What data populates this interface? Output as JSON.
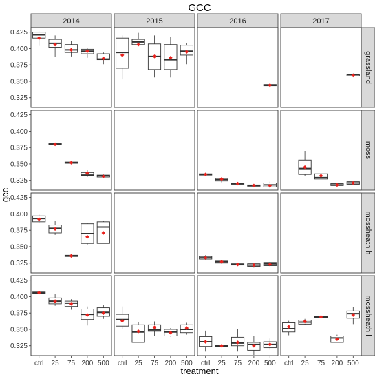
{
  "chart_data": {
    "type": "boxplot",
    "title": "GCC",
    "xlabel": "treatment",
    "ylabel": "gcc",
    "ylim": [
      0.31,
      0.432
    ],
    "yticks": [
      "0.325",
      "0.350",
      "0.375",
      "0.400",
      "0.425"
    ],
    "categories": [
      "ctrl",
      "25",
      "75",
      "200",
      "500"
    ],
    "years": [
      "2014",
      "2015",
      "2016",
      "2017"
    ],
    "sites": [
      "grassland",
      "moss",
      "mossheath h",
      "mossheath l"
    ],
    "colors": {
      "mean": "#e8211c",
      "strip": "#d9d9d9",
      "box": "#333333",
      "border": "#333333"
    },
    "panels": {
      "grassland": {
        "2014": [
          {
            "min": 0.404,
            "q1": 0.416,
            "med": 0.421,
            "q3": 0.425,
            "max": 0.426,
            "mean": 0.416
          },
          {
            "min": 0.387,
            "q1": 0.402,
            "med": 0.408,
            "q3": 0.414,
            "max": 0.42,
            "mean": 0.406
          },
          {
            "min": 0.388,
            "q1": 0.394,
            "med": 0.398,
            "q3": 0.406,
            "max": 0.412,
            "mean": 0.398
          },
          {
            "min": 0.386,
            "q1": 0.392,
            "med": 0.396,
            "q3": 0.399,
            "max": 0.401,
            "mean": 0.396
          },
          {
            "min": 0.376,
            "q1": 0.383,
            "med": 0.384,
            "q3": 0.392,
            "max": 0.394,
            "mean": 0.385
          }
        ],
        "2015": [
          {
            "min": 0.353,
            "q1": 0.37,
            "med": 0.394,
            "q3": 0.416,
            "max": 0.42,
            "mean": 0.39
          },
          {
            "min": 0.404,
            "q1": 0.406,
            "med": 0.41,
            "q3": 0.414,
            "max": 0.424,
            "mean": 0.406
          },
          {
            "min": 0.356,
            "q1": 0.368,
            "med": 0.388,
            "q3": 0.407,
            "max": 0.42,
            "mean": 0.388
          },
          {
            "min": 0.356,
            "q1": 0.368,
            "med": 0.383,
            "q3": 0.406,
            "max": 0.418,
            "mean": 0.386
          },
          {
            "min": 0.376,
            "q1": 0.39,
            "med": 0.396,
            "q3": 0.405,
            "max": 0.408,
            "mean": 0.395
          }
        ],
        "2016": [
          null,
          null,
          null,
          null,
          {
            "min": 0.343,
            "q1": 0.343,
            "med": 0.344,
            "q3": 0.345,
            "max": 0.346,
            "mean": 0.344
          }
        ],
        "2017": [
          null,
          null,
          null,
          null,
          {
            "min": 0.357,
            "q1": 0.358,
            "med": 0.36,
            "q3": 0.361,
            "max": 0.362,
            "mean": 0.359
          }
        ]
      },
      "moss": {
        "2014": [
          null,
          {
            "min": 0.379,
            "q1": 0.379,
            "med": 0.38,
            "q3": 0.381,
            "max": 0.381,
            "mean": 0.38
          },
          {
            "min": 0.351,
            "q1": 0.351,
            "med": 0.352,
            "q3": 0.353,
            "max": 0.353,
            "mean": 0.352
          },
          {
            "min": 0.33,
            "q1": 0.332,
            "med": 0.333,
            "q3": 0.337,
            "max": 0.341,
            "mean": 0.336
          },
          {
            "min": 0.329,
            "q1": 0.33,
            "med": 0.332,
            "q3": 0.333,
            "max": 0.334,
            "mean": 0.331
          }
        ],
        "2015": [
          null,
          null,
          null,
          null,
          null
        ],
        "2016": [
          {
            "min": 0.332,
            "q1": 0.333,
            "med": 0.334,
            "q3": 0.335,
            "max": 0.335,
            "mean": 0.334
          },
          {
            "min": 0.322,
            "q1": 0.324,
            "med": 0.326,
            "q3": 0.328,
            "max": 0.33,
            "mean": 0.327
          },
          {
            "min": 0.318,
            "q1": 0.319,
            "med": 0.32,
            "q3": 0.321,
            "max": 0.322,
            "mean": 0.32
          },
          {
            "min": 0.315,
            "q1": 0.316,
            "med": 0.317,
            "q3": 0.318,
            "max": 0.318,
            "mean": 0.317
          },
          {
            "min": 0.313,
            "q1": 0.315,
            "med": 0.318,
            "q3": 0.321,
            "max": 0.323,
            "mean": 0.317
          }
        ],
        "2017": [
          null,
          {
            "min": 0.332,
            "q1": 0.334,
            "med": 0.343,
            "q3": 0.356,
            "max": 0.37,
            "mean": 0.345
          },
          {
            "min": 0.326,
            "q1": 0.327,
            "med": 0.329,
            "q3": 0.335,
            "max": 0.337,
            "mean": 0.332
          },
          {
            "min": 0.315,
            "q1": 0.317,
            "med": 0.318,
            "q3": 0.32,
            "max": 0.32,
            "mean": 0.318
          },
          {
            "min": 0.318,
            "q1": 0.319,
            "med": 0.321,
            "q3": 0.323,
            "max": 0.324,
            "mean": 0.321
          }
        ]
      },
      "mossheath h": {
        "2014": [
          {
            "min": 0.386,
            "q1": 0.388,
            "med": 0.393,
            "q3": 0.397,
            "max": 0.399,
            "mean": 0.392
          },
          {
            "min": 0.368,
            "q1": 0.371,
            "med": 0.378,
            "q3": 0.383,
            "max": 0.389,
            "mean": 0.377
          },
          {
            "min": 0.335,
            "q1": 0.335,
            "med": 0.336,
            "q3": 0.337,
            "max": 0.337,
            "mean": 0.336
          },
          {
            "min": 0.353,
            "q1": 0.355,
            "med": 0.37,
            "q3": 0.385,
            "max": 0.386,
            "mean": 0.365
          },
          {
            "min": 0.355,
            "q1": 0.355,
            "med": 0.38,
            "q3": 0.388,
            "max": 0.389,
            "mean": 0.371
          }
        ],
        "2015": [
          null,
          null,
          null,
          null,
          null
        ],
        "2016": [
          {
            "min": 0.329,
            "q1": 0.331,
            "med": 0.333,
            "q3": 0.335,
            "max": 0.337,
            "mean": 0.333
          },
          {
            "min": 0.324,
            "q1": 0.325,
            "med": 0.327,
            "q3": 0.328,
            "max": 0.329,
            "mean": 0.327
          },
          {
            "min": 0.321,
            "q1": 0.322,
            "med": 0.323,
            "q3": 0.324,
            "max": 0.325,
            "mean": 0.323
          },
          {
            "min": 0.318,
            "q1": 0.32,
            "med": 0.322,
            "q3": 0.324,
            "max": 0.325,
            "mean": 0.322
          },
          {
            "min": 0.32,
            "q1": 0.321,
            "med": 0.324,
            "q3": 0.326,
            "max": 0.327,
            "mean": 0.323
          }
        ],
        "2017": [
          null,
          null,
          null,
          null,
          null
        ]
      },
      "mossheath l": {
        "2014": [
          {
            "min": 0.404,
            "q1": 0.405,
            "med": 0.406,
            "q3": 0.407,
            "max": 0.407,
            "mean": 0.406
          },
          {
            "min": 0.386,
            "q1": 0.389,
            "med": 0.393,
            "q3": 0.398,
            "max": 0.404,
            "mean": 0.393
          },
          {
            "min": 0.38,
            "q1": 0.385,
            "med": 0.39,
            "q3": 0.393,
            "max": 0.396,
            "mean": 0.389
          },
          {
            "min": 0.356,
            "q1": 0.365,
            "med": 0.373,
            "q3": 0.381,
            "max": 0.385,
            "mean": 0.372
          },
          {
            "min": 0.366,
            "q1": 0.37,
            "med": 0.376,
            "q3": 0.383,
            "max": 0.387,
            "mean": 0.375
          }
        ],
        "2015": [
          {
            "min": 0.351,
            "q1": 0.355,
            "med": 0.365,
            "q3": 0.373,
            "max": 0.385,
            "mean": 0.363
          },
          {
            "min": 0.33,
            "q1": 0.33,
            "med": 0.346,
            "q3": 0.357,
            "max": 0.361,
            "mean": 0.347
          },
          {
            "min": 0.34,
            "q1": 0.347,
            "med": 0.349,
            "q3": 0.357,
            "max": 0.362,
            "mean": 0.353
          },
          {
            "min": 0.339,
            "q1": 0.34,
            "med": 0.346,
            "q3": 0.35,
            "max": 0.352,
            "mean": 0.345
          },
          {
            "min": 0.342,
            "q1": 0.345,
            "med": 0.35,
            "q3": 0.357,
            "max": 0.36,
            "mean": 0.352
          }
        ],
        "2016": [
          {
            "min": 0.316,
            "q1": 0.324,
            "med": 0.331,
            "q3": 0.339,
            "max": 0.348,
            "mean": 0.331
          },
          {
            "min": 0.323,
            "q1": 0.324,
            "med": 0.325,
            "q3": 0.326,
            "max": 0.327,
            "mean": 0.325
          },
          {
            "min": 0.316,
            "q1": 0.325,
            "med": 0.329,
            "q3": 0.338,
            "max": 0.35,
            "mean": 0.33
          },
          {
            "min": 0.311,
            "q1": 0.318,
            "med": 0.327,
            "q3": 0.33,
            "max": 0.34,
            "mean": 0.325
          },
          {
            "min": 0.319,
            "q1": 0.322,
            "med": 0.327,
            "q3": 0.331,
            "max": 0.336,
            "mean": 0.327
          }
        ],
        "2017": [
          {
            "min": 0.341,
            "q1": 0.346,
            "med": 0.351,
            "q3": 0.36,
            "max": 0.363,
            "mean": 0.354
          },
          {
            "min": 0.357,
            "q1": 0.358,
            "med": 0.361,
            "q3": 0.364,
            "max": 0.366,
            "mean": 0.362
          },
          {
            "min": 0.368,
            "q1": 0.368,
            "med": 0.369,
            "q3": 0.37,
            "max": 0.371,
            "mean": 0.369
          },
          {
            "min": 0.33,
            "q1": 0.33,
            "med": 0.337,
            "q3": 0.34,
            "max": 0.342,
            "mean": 0.335
          },
          {
            "min": 0.358,
            "q1": 0.367,
            "med": 0.374,
            "q3": 0.378,
            "max": 0.384,
            "mean": 0.372
          }
        ]
      }
    }
  }
}
